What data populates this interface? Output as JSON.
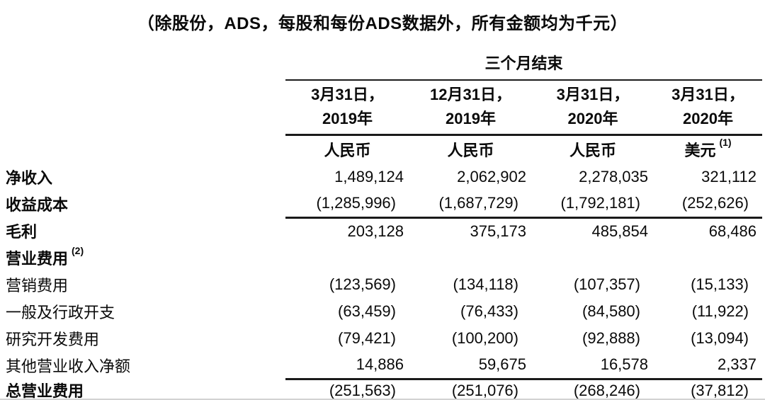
{
  "title": "（除股份，ADS，每股和每份ADS数据外，所有金额均为千元）",
  "table": {
    "period_header": "三个月结束",
    "columns": [
      {
        "date_line1": "3月31日，",
        "date_line2": "2019年",
        "currency": "人民币",
        "currency_note": ""
      },
      {
        "date_line1": "12月31日，",
        "date_line2": "2019年",
        "currency": "人民币",
        "currency_note": ""
      },
      {
        "date_line1": "3月31日，",
        "date_line2": "2020年",
        "currency": "人民币",
        "currency_note": ""
      },
      {
        "date_line1": "3月31日，",
        "date_line2": "2020年",
        "currency": "美元",
        "currency_note": "(1)"
      }
    ],
    "rows": [
      {
        "label": "净收入",
        "note": "",
        "bold": true,
        "rule_below": false,
        "values": [
          "1,489,124",
          "2,062,902",
          "2,278,035",
          "321,112"
        ]
      },
      {
        "label": "收益成本",
        "note": "",
        "bold": true,
        "rule_below": true,
        "values": [
          "(1,285,996)",
          "(1,687,729)",
          "(1,792,181)",
          "(252,626)"
        ]
      },
      {
        "label": "毛利",
        "note": "",
        "bold": true,
        "rule_below": false,
        "values": [
          "203,128",
          "375,173",
          "485,854",
          "68,486"
        ]
      },
      {
        "label": "营业费用",
        "note": "(2)",
        "bold": true,
        "rule_below": false,
        "values": [
          "",
          "",
          "",
          ""
        ]
      },
      {
        "label": "营销费用",
        "note": "",
        "bold": false,
        "rule_below": false,
        "values": [
          "(123,569)",
          "(134,118)",
          "(107,357)",
          "(15,133)"
        ]
      },
      {
        "label": "一般及行政开支",
        "note": "",
        "bold": false,
        "rule_below": false,
        "values": [
          "(63,459)",
          "(76,433)",
          "(84,580)",
          "(11,922)"
        ]
      },
      {
        "label": "研究开发费用",
        "note": "",
        "bold": false,
        "rule_below": false,
        "values": [
          "(79,421)",
          "(100,200)",
          "(92,888)",
          "(13,094)"
        ]
      },
      {
        "label": "其他营业收入净额",
        "note": "",
        "bold": false,
        "rule_below": true,
        "values": [
          "14,886",
          "59,675",
          "16,578",
          "2,337"
        ]
      },
      {
        "label": "总营业费用",
        "note": "",
        "bold": true,
        "rule_below": false,
        "values": [
          "(251,563)",
          "(251,076)",
          "(268,246)",
          "(37,812)"
        ]
      }
    ]
  }
}
